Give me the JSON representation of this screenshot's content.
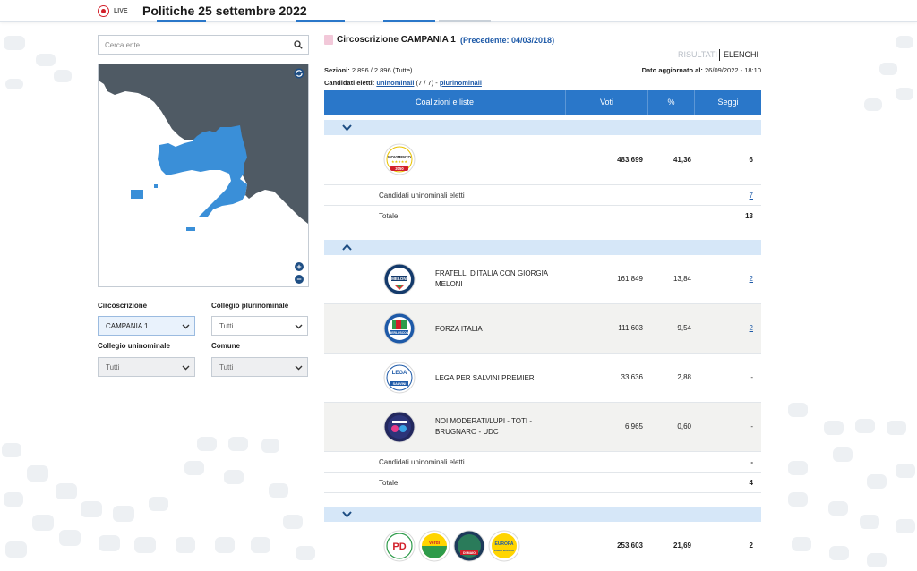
{
  "header": {
    "live_label": "LIVE",
    "title": "Politiche 25 settembre 2022"
  },
  "search": {
    "placeholder": "Cerca ente..."
  },
  "filters": {
    "circoscrizione_label": "Circoscrizione",
    "circoscrizione_value": "CAMPANIA 1",
    "plurinominale_label": "Collegio plurinominale",
    "plurinominale_value": "Tutti",
    "uninominale_label": "Collegio uninominale",
    "uninominale_value": "Tutti",
    "comune_label": "Comune",
    "comune_value": "Tutti"
  },
  "main": {
    "title": "Circoscrizione CAMPANIA 1",
    "previous": "(Precedente: 04/03/2018)",
    "tab_risultati": "RISULTATI",
    "tab_elenchi": "ELENCHI",
    "sezioni_label": "Sezioni:",
    "sezioni_value": "2.896 / 2.896 (Tutte)",
    "aggiornato_label": "Dato aggiornato al:",
    "aggiornato_value": "26/09/2022 - 18:10",
    "candidati_label": "Candidati eletti:",
    "uninominali_link": "uninominali",
    "uninominali_count": "(7 / 7) -",
    "plurinominali_link": "plurinominali"
  },
  "table": {
    "headers": {
      "coalizioni": "Coalizioni e liste",
      "voti": "Voti",
      "perc": "%",
      "seggi": "Seggi"
    },
    "group1": {
      "voti": "483.699",
      "perc": "41,36",
      "seggi": "6",
      "uninominali_label": "Candidati uninominali eletti",
      "uninominali_value": "7",
      "totale_label": "Totale",
      "totale_value": "13"
    },
    "group2": {
      "lists": [
        {
          "name": "FRATELLI D'ITALIA CON GIORGIA MELONI",
          "voti": "161.849",
          "perc": "13,84",
          "seggi": "2"
        },
        {
          "name": "FORZA ITALIA",
          "voti": "111.603",
          "perc": "9,54",
          "seggi": "2"
        },
        {
          "name": "LEGA PER SALVINI PREMIER",
          "voti": "33.636",
          "perc": "2,88",
          "seggi": "-"
        },
        {
          "name": "NOI MODERATI/LUPI - TOTI - BRUGNARO - UDC",
          "voti": "6.965",
          "perc": "0,60",
          "seggi": "-"
        }
      ],
      "uninominali_label": "Candidati uninominali eletti",
      "uninominali_value": "-",
      "totale_label": "Totale",
      "totale_value": "4"
    },
    "group3": {
      "voti": "253.603",
      "perc": "21,69",
      "seggi": "2"
    }
  },
  "logos": {
    "m5s": {
      "text1": "MOVIMENTO",
      "text2": "2050"
    },
    "fdi": {
      "text1": "MELONI"
    },
    "fi": {
      "text1": "BERLUSCONI"
    },
    "lega": {
      "text1": "LEGA",
      "text2": "SALVINI"
    },
    "pd": {
      "text1": "PD"
    },
    "ev": {
      "text1": "Verdi"
    },
    "ic": {
      "text1": "DI MAIO"
    },
    "eu": {
      "text1": "EUROPA",
      "text2": "EMMA BONINO"
    }
  },
  "colors": {
    "primary": "#2a77c9",
    "group_bar": "#d6e7f8",
    "map_region": "#3a8fd8",
    "map_other": "#4f5a64",
    "live_red": "#d21f2a"
  }
}
